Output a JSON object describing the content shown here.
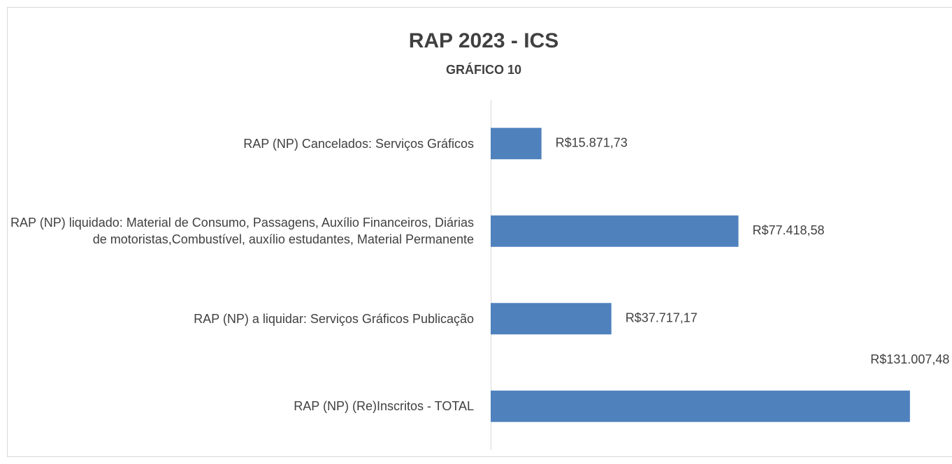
{
  "chart_data": {
    "type": "barh",
    "title": "RAP 2023 - ICS",
    "subtitle": "GRÁFICO 10",
    "categories": [
      "RAP (NP) Cancelados: Serviços Gráficos",
      "RAP (NP) liquidado: Material de Consumo, Passagens, Auxílio Financeiros, Diárias de motoristas,Combustível, auxílio estudantes, Material Permanente",
      "RAP (NP) a liquidar: Serviços Gráficos Publicação",
      "RAP (NP) (Re)Inscritos - TOTAL"
    ],
    "values": [
      15871.73,
      77418.58,
      37717.17,
      131007.48
    ],
    "value_labels": [
      "R$15.871,73",
      "R$77.418,58",
      "R$37.717,17",
      "R$131.007,48"
    ],
    "color": "#4f81bd",
    "xlim": [
      0,
      140000
    ]
  }
}
